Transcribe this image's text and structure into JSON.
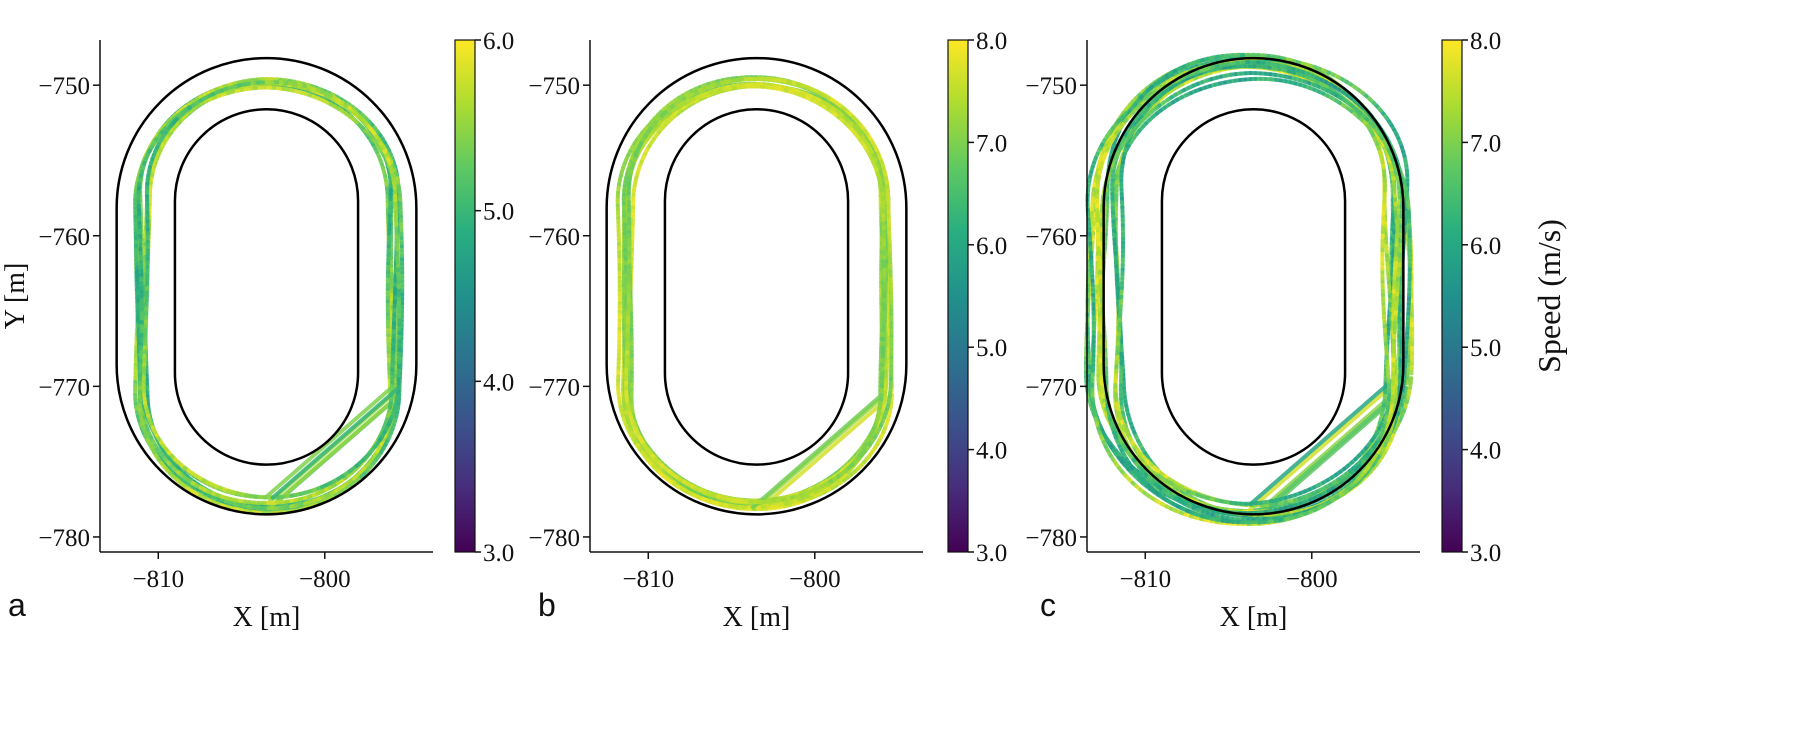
{
  "colors": {
    "viridis": [
      "#440154",
      "#472d7b",
      "#3b528b",
      "#2c728e",
      "#21918c",
      "#28ae80",
      "#5ec962",
      "#addc30",
      "#fde725"
    ],
    "track": "#000000",
    "axis": "#111111"
  },
  "chart_data": [
    {
      "type": "scatter",
      "panel_label": "a",
      "xlabel": "X [m]",
      "ylabel": "Y [m]",
      "xlim": [
        -813.5,
        -793.5
      ],
      "ylim": [
        -781,
        -747
      ],
      "xticks": [
        -810,
        -800
      ],
      "yticks": [
        -750,
        -760,
        -770,
        -780
      ],
      "colorbar": {
        "label": "",
        "min": 3.0,
        "max": 6.0,
        "ticks": [
          3.0,
          4.0,
          5.0,
          6.0
        ],
        "colormap": "viridis"
      },
      "track_outer": {
        "x_min": -812.5,
        "x_max": -794.5,
        "y_min": -778.5,
        "y_max": -748.2,
        "corner_radius": 9
      },
      "track_inner": {
        "x_min": -809,
        "x_max": -798,
        "y_min": -775.2,
        "y_max": -751.6,
        "corner_radius": 5.5
      },
      "trajectory": {
        "center_x": -803.5,
        "center_y": -763.8,
        "half_width": 7.6,
        "half_height": 14.0,
        "corner_radius": 7.6,
        "laps": 8,
        "spread": 0.35,
        "speed_base": 5.3,
        "speed_var": 0.4
      }
    },
    {
      "type": "scatter",
      "panel_label": "b",
      "xlabel": "X [m]",
      "ylabel": "",
      "xlim": [
        -813.5,
        -793.5
      ],
      "ylim": [
        -781,
        -747
      ],
      "xticks": [
        -810,
        -800
      ],
      "yticks": [
        -750,
        -760,
        -770,
        -780
      ],
      "colorbar": {
        "label": "",
        "min": 3.0,
        "max": 8.0,
        "ticks": [
          3.0,
          4.0,
          5.0,
          6.0,
          7.0,
          8.0
        ],
        "colormap": "viridis"
      },
      "track_outer": {
        "x_min": -812.5,
        "x_max": -794.5,
        "y_min": -778.5,
        "y_max": -748.2,
        "corner_radius": 9
      },
      "track_inner": {
        "x_min": -809,
        "x_max": -798,
        "y_min": -775.2,
        "y_max": -751.6,
        "corner_radius": 5.5
      },
      "trajectory": {
        "center_x": -803.5,
        "center_y": -763.8,
        "half_width": 7.8,
        "half_height": 14.0,
        "corner_radius": 7.8,
        "laps": 8,
        "spread": 0.3,
        "speed_base": 7.3,
        "speed_var": 0.4
      }
    },
    {
      "type": "scatter",
      "panel_label": "c",
      "xlabel": "X [m]",
      "ylabel": "",
      "xlim": [
        -813.5,
        -793.5
      ],
      "ylim": [
        -781,
        -747
      ],
      "xticks": [
        -810,
        -800
      ],
      "yticks": [
        -750,
        -760,
        -770,
        -780
      ],
      "colorbar": {
        "label": "Speed (m/s)",
        "min": 3.0,
        "max": 8.0,
        "ticks": [
          3.0,
          4.0,
          5.0,
          6.0,
          7.0,
          8.0
        ],
        "colormap": "viridis"
      },
      "track_outer": {
        "x_min": -812.5,
        "x_max": -794.5,
        "y_min": -778.5,
        "y_max": -748.2,
        "corner_radius": 9
      },
      "track_inner": {
        "x_min": -809,
        "x_max": -798,
        "y_min": -775.2,
        "y_max": -751.6,
        "corner_radius": 5.5
      },
      "trajectory": {
        "center_x": -803.6,
        "center_y": -763.5,
        "half_width": 8.9,
        "half_height": 15.0,
        "corner_radius": 8.9,
        "laps": 12,
        "spread": 0.7,
        "speed_base": 6.8,
        "speed_var": 0.8
      }
    }
  ]
}
